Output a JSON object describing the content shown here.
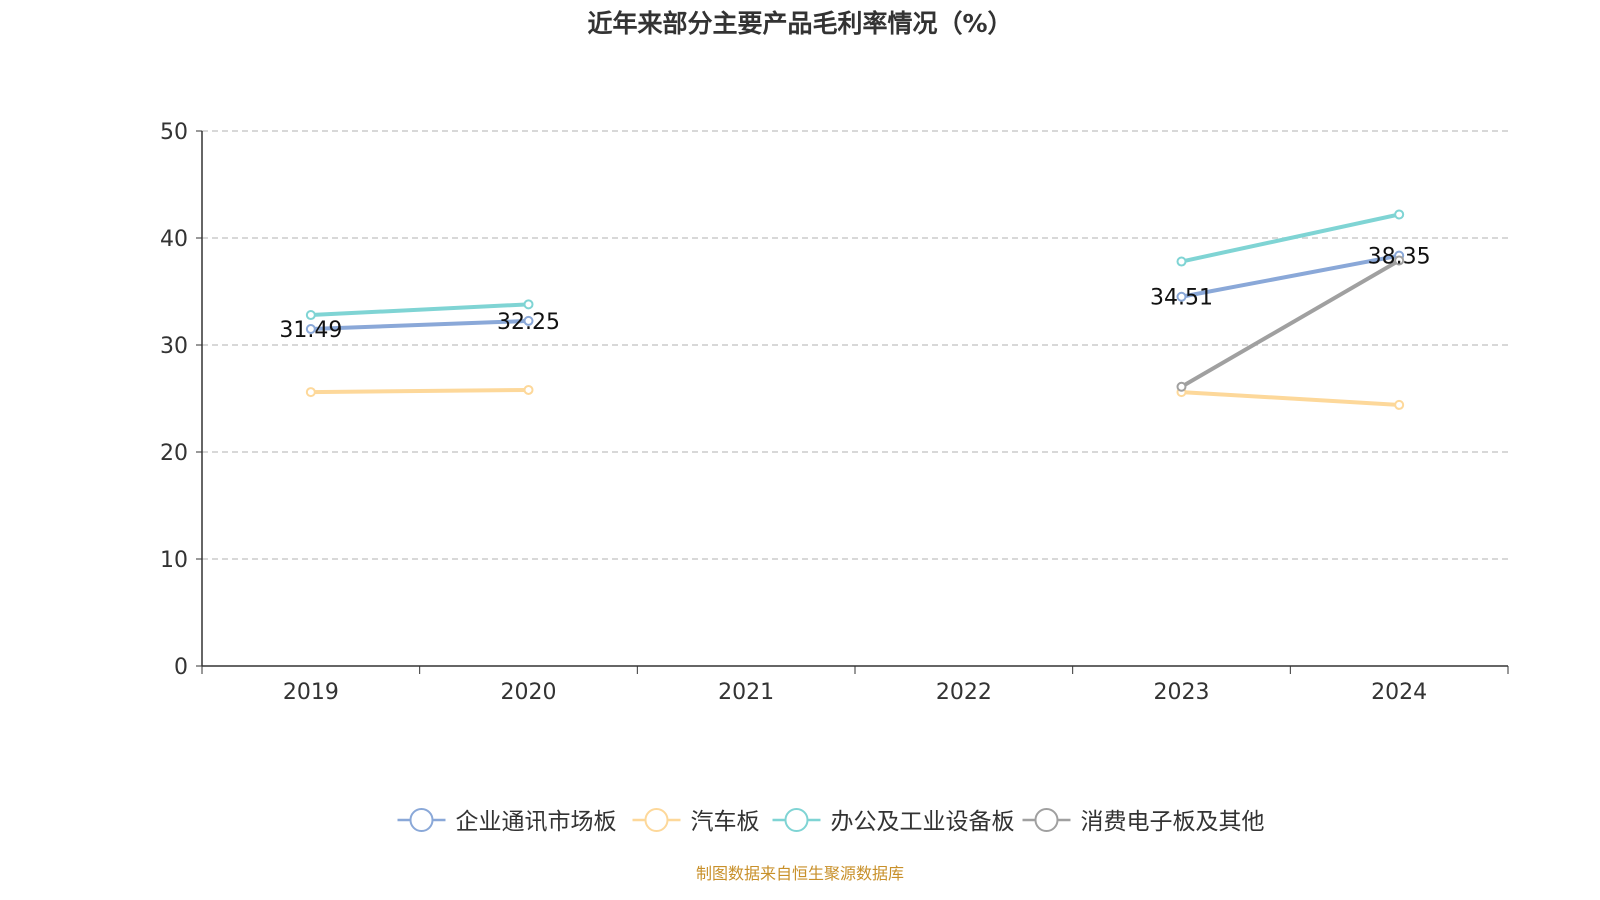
{
  "chart_data": {
    "type": "line",
    "title": "近年来部分主要产品毛利率情况（%）",
    "categories": [
      "2019",
      "2020",
      "2021",
      "2022",
      "2023",
      "2024"
    ],
    "ylim": [
      0,
      50
    ],
    "yticks": [
      0,
      10,
      20,
      30,
      40,
      50
    ],
    "grid": true,
    "legend_position": "bottom",
    "series": [
      {
        "name": "企业通讯市场板",
        "color": "#8aa8d8",
        "values": [
          31.49,
          32.25,
          null,
          null,
          34.51,
          38.35
        ],
        "labels": [
          "31.49",
          "32.25",
          null,
          null,
          "34.51",
          "38.35"
        ]
      },
      {
        "name": "汽车板",
        "color": "#fdd89a",
        "values": [
          25.6,
          25.8,
          null,
          null,
          25.6,
          24.4
        ]
      },
      {
        "name": "办公及工业设备板",
        "color": "#7fd4d4",
        "values": [
          32.8,
          33.8,
          null,
          null,
          37.8,
          42.2
        ]
      },
      {
        "name": "消费电子板及其他",
        "color": "#a0a0a0",
        "values": [
          null,
          null,
          null,
          null,
          26.1,
          37.9
        ]
      }
    ]
  },
  "source": "制图数据来自恒生聚源数据库"
}
